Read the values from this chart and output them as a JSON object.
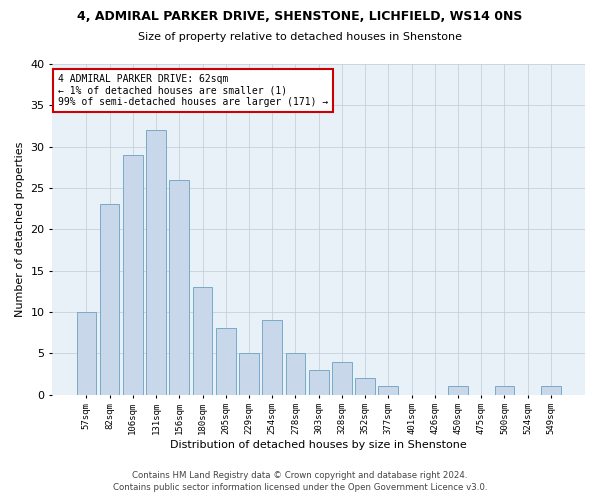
{
  "title1": "4, ADMIRAL PARKER DRIVE, SHENSTONE, LICHFIELD, WS14 0NS",
  "title2": "Size of property relative to detached houses in Shenstone",
  "xlabel": "Distribution of detached houses by size in Shenstone",
  "ylabel": "Number of detached properties",
  "categories": [
    "57sqm",
    "82sqm",
    "106sqm",
    "131sqm",
    "156sqm",
    "180sqm",
    "205sqm",
    "229sqm",
    "254sqm",
    "278sqm",
    "303sqm",
    "328sqm",
    "352sqm",
    "377sqm",
    "401sqm",
    "426sqm",
    "450sqm",
    "475sqm",
    "500sqm",
    "524sqm",
    "549sqm"
  ],
  "values": [
    10,
    23,
    29,
    32,
    26,
    13,
    8,
    5,
    9,
    5,
    3,
    4,
    2,
    1,
    0,
    0,
    1,
    0,
    1,
    0,
    1
  ],
  "bar_color": "#c8d8ea",
  "bar_edge_color": "#7aaac8",
  "annotation_line1": "4 ADMIRAL PARKER DRIVE: 62sqm",
  "annotation_line2": "← 1% of detached houses are smaller (1)",
  "annotation_line3": "99% of semi-detached houses are larger (171) →",
  "annotation_box_color": "#ffffff",
  "annotation_box_edge": "#cc0000",
  "ylim": [
    0,
    40
  ],
  "yticks": [
    0,
    5,
    10,
    15,
    20,
    25,
    30,
    35,
    40
  ],
  "footer1": "Contains HM Land Registry data © Crown copyright and database right 2024.",
  "footer2": "Contains public sector information licensed under the Open Government Licence v3.0.",
  "bg_color": "#ffffff",
  "plot_bg_color": "#e8f0f8",
  "grid_color": "#c0ccd8"
}
